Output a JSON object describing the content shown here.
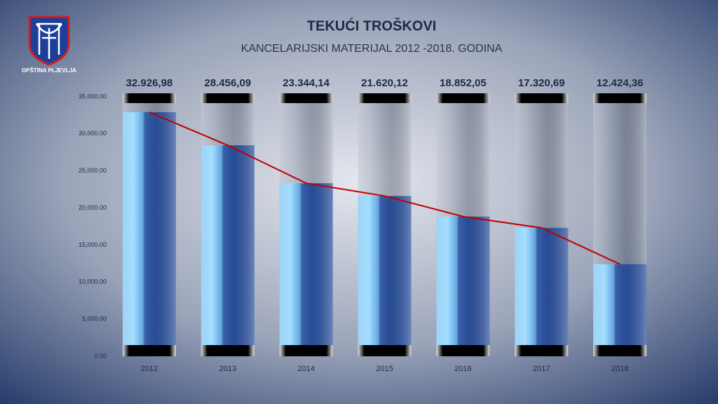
{
  "logo_text": "OPŠTINA PLJEVLJA",
  "chart_data": {
    "type": "bar",
    "title": "TEKUĆI TROŠKOVI",
    "subtitle": "KANCELARIJSKI MATERIJAL 2012 -2018. GODINA",
    "categories": [
      "2012",
      "2013",
      "2014",
      "2015",
      "2016",
      "2017",
      "2018"
    ],
    "values": [
      32926.98,
      28456.09,
      23344.14,
      21620.12,
      18852.05,
      17320.69,
      12424.36
    ],
    "value_labels": [
      "32.926,98",
      "28.456,09",
      "23.344,14",
      "21.620,12",
      "18.852,05",
      "17.320,69",
      "12.424,36"
    ],
    "line_color": "#c00000",
    "ylim": [
      0,
      35000
    ],
    "yticks": [
      {
        "value": 0,
        "label": "0.00"
      },
      {
        "value": 5000,
        "label": "5,000.00"
      },
      {
        "value": 10000,
        "label": "10,000.00"
      },
      {
        "value": 15000,
        "label": "15,000.00"
      },
      {
        "value": 20000,
        "label": "20,000.00"
      },
      {
        "value": 25000,
        "label": "25,000.00"
      },
      {
        "value": 30000,
        "label": "30,000.00"
      },
      {
        "value": 35000,
        "label": "35,000.00"
      }
    ],
    "grid": false
  }
}
